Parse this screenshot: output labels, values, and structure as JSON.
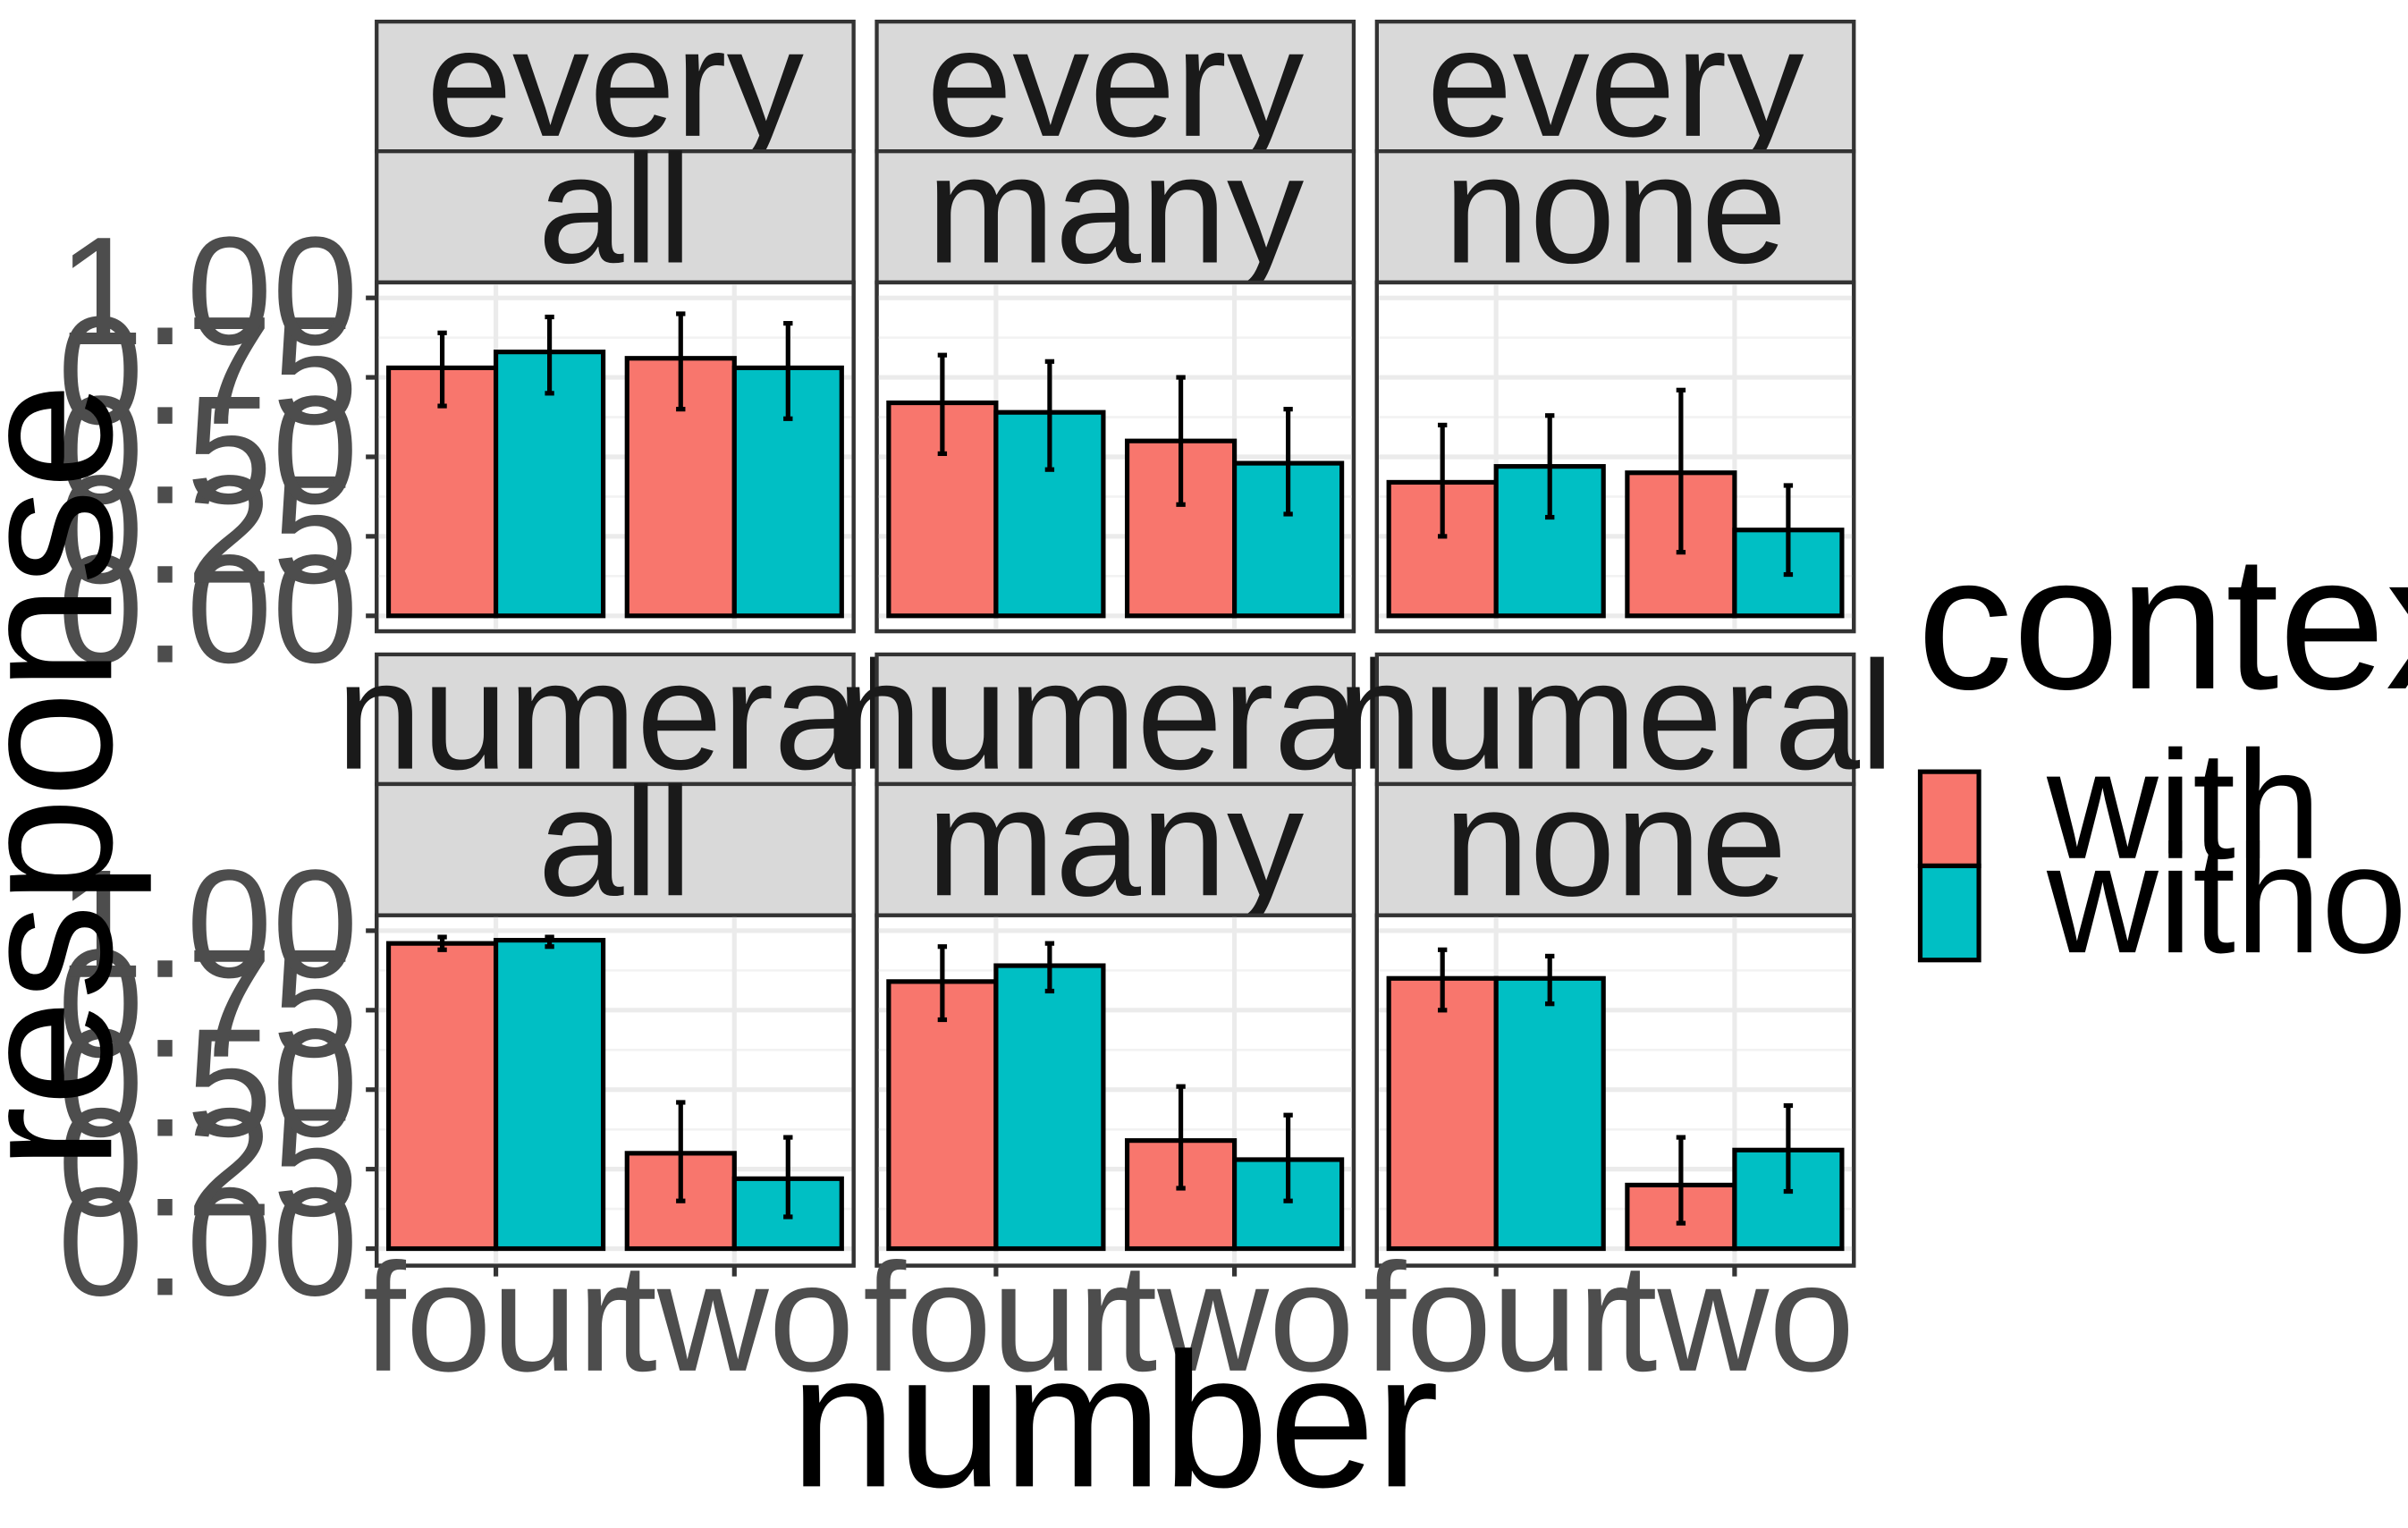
{
  "chart_data": {
    "type": "bar",
    "xlabel": "number",
    "ylabel": "response",
    "ylim": [
      0,
      1
    ],
    "yticks": [
      "0.00",
      "0.25",
      "0.50",
      "0.75",
      "1.00"
    ],
    "categories": [
      "four",
      "two"
    ],
    "legend": {
      "title": "context",
      "placement": "right",
      "entries": [
        {
          "name": "with",
          "color": "#f8766d"
        },
        {
          "name": "without",
          "color": "#00bfc4"
        }
      ]
    },
    "grid": true,
    "facet_rows": [
      "every",
      "numeral"
    ],
    "facet_cols": [
      "all",
      "many",
      "none"
    ],
    "panels": [
      {
        "row_label": "every",
        "col_label": "all",
        "series": [
          {
            "name": "with",
            "values": [
              0.78,
              0.81
            ],
            "err_low": [
              0.66,
              0.65
            ],
            "err_high": [
              0.89,
              0.95
            ]
          },
          {
            "name": "without",
            "values": [
              0.83,
              0.78
            ],
            "err_low": [
              0.7,
              0.62
            ],
            "err_high": [
              0.94,
              0.92
            ]
          }
        ]
      },
      {
        "row_label": "every",
        "col_label": "many",
        "series": [
          {
            "name": "with",
            "values": [
              0.67,
              0.55
            ],
            "err_low": [
              0.51,
              0.35
            ],
            "err_high": [
              0.82,
              0.75
            ]
          },
          {
            "name": "without",
            "values": [
              0.64,
              0.48
            ],
            "err_low": [
              0.46,
              0.32
            ],
            "err_high": [
              0.8,
              0.65
            ]
          }
        ]
      },
      {
        "row_label": "every",
        "col_label": "none",
        "series": [
          {
            "name": "with",
            "values": [
              0.42,
              0.45
            ],
            "err_low": [
              0.25,
              0.2
            ],
            "err_high": [
              0.6,
              0.71
            ]
          },
          {
            "name": "without",
            "values": [
              0.47,
              0.27
            ],
            "err_low": [
              0.31,
              0.13
            ],
            "err_high": [
              0.63,
              0.41
            ]
          }
        ]
      },
      {
        "row_label": "numeral",
        "col_label": "all",
        "series": [
          {
            "name": "with",
            "values": [
              0.96,
              0.3
            ],
            "err_low": [
              0.94,
              0.15
            ],
            "err_high": [
              0.98,
              0.46
            ]
          },
          {
            "name": "without",
            "values": [
              0.97,
              0.22
            ],
            "err_low": [
              0.95,
              0.1
            ],
            "err_high": [
              0.98,
              0.35
            ]
          }
        ]
      },
      {
        "row_label": "numeral",
        "col_label": "many",
        "series": [
          {
            "name": "with",
            "values": [
              0.84,
              0.34
            ],
            "err_low": [
              0.72,
              0.19
            ],
            "err_high": [
              0.95,
              0.51
            ]
          },
          {
            "name": "without",
            "values": [
              0.89,
              0.28
            ],
            "err_low": [
              0.81,
              0.15
            ],
            "err_high": [
              0.96,
              0.42
            ]
          }
        ]
      },
      {
        "row_label": "numeral",
        "col_label": "none",
        "series": [
          {
            "name": "with",
            "values": [
              0.85,
              0.2
            ],
            "err_low": [
              0.75,
              0.08
            ],
            "err_high": [
              0.94,
              0.35
            ]
          },
          {
            "name": "without",
            "values": [
              0.85,
              0.31
            ],
            "err_low": [
              0.77,
              0.18
            ],
            "err_high": [
              0.92,
              0.45
            ]
          }
        ]
      }
    ]
  }
}
